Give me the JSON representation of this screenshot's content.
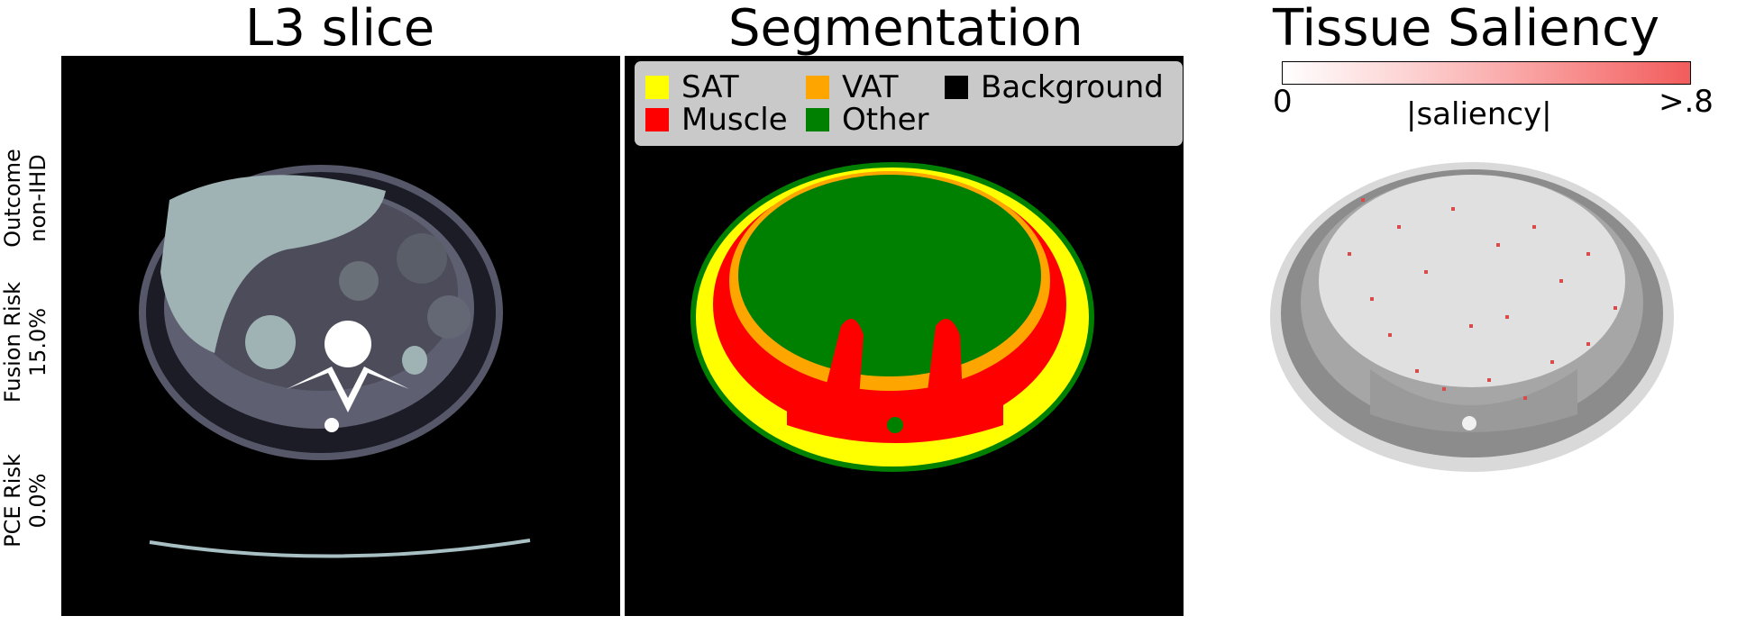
{
  "titles": {
    "left": "L3 slice",
    "middle": "Segmentation",
    "right": "Tissue Saliency"
  },
  "side_labels": [
    {
      "line1": "Outcome",
      "line2": "non-IHD"
    },
    {
      "line1": "Fusion Risk",
      "line2": "15.0%"
    },
    {
      "line1": "PCE Risk",
      "line2": "0.0%"
    }
  ],
  "legend": {
    "items": [
      {
        "label": "SAT",
        "color": "#ffff00"
      },
      {
        "label": "VAT",
        "color": "#ffa500"
      },
      {
        "label": "Background",
        "color": "#000000"
      },
      {
        "label": "Muscle",
        "color": "#ff0000"
      },
      {
        "label": "Other",
        "color": "#008000"
      }
    ]
  },
  "colorbar": {
    "min_label": "0",
    "max_label": ">.8",
    "label": "|saliency|",
    "color_low": "#ffffff",
    "color_high": "#f25c5c"
  }
}
